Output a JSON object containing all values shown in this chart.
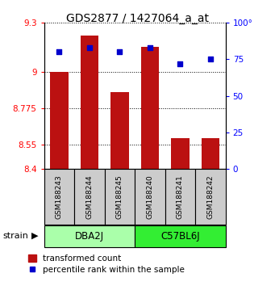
{
  "title": "GDS2877 / 1427064_a_at",
  "samples": [
    "GSM188243",
    "GSM188244",
    "GSM188245",
    "GSM188240",
    "GSM188241",
    "GSM188242"
  ],
  "bar_values": [
    9.0,
    9.22,
    8.875,
    9.15,
    8.59,
    8.59
  ],
  "bar_base": 8.4,
  "percentile_values": [
    80,
    83,
    80,
    83,
    72,
    75
  ],
  "bar_color": "#bb1111",
  "dot_color": "#0000cc",
  "ylim_left": [
    8.4,
    9.3
  ],
  "ylim_right": [
    0,
    100
  ],
  "yticks_left": [
    8.4,
    8.55,
    8.775,
    9.0,
    9.3
  ],
  "ytick_labels_left": [
    "8.4",
    "8.55",
    "8.775",
    "9",
    "9.3"
  ],
  "yticks_right": [
    0,
    25,
    50,
    75,
    100
  ],
  "ytick_labels_right": [
    "0",
    "25",
    "50",
    "75",
    "100°"
  ],
  "strain_groups": [
    {
      "label": "DBA2J",
      "indices": [
        0,
        1,
        2
      ],
      "color": "#aaffaa"
    },
    {
      "label": "C57BL6J",
      "indices": [
        3,
        4,
        5
      ],
      "color": "#33ee33"
    }
  ],
  "strain_label": "strain",
  "legend_bar_label": "transformed count",
  "legend_dot_label": "percentile rank within the sample",
  "bar_width": 0.6,
  "sample_box_color": "#cccccc",
  "fig_bg": "#ffffff"
}
